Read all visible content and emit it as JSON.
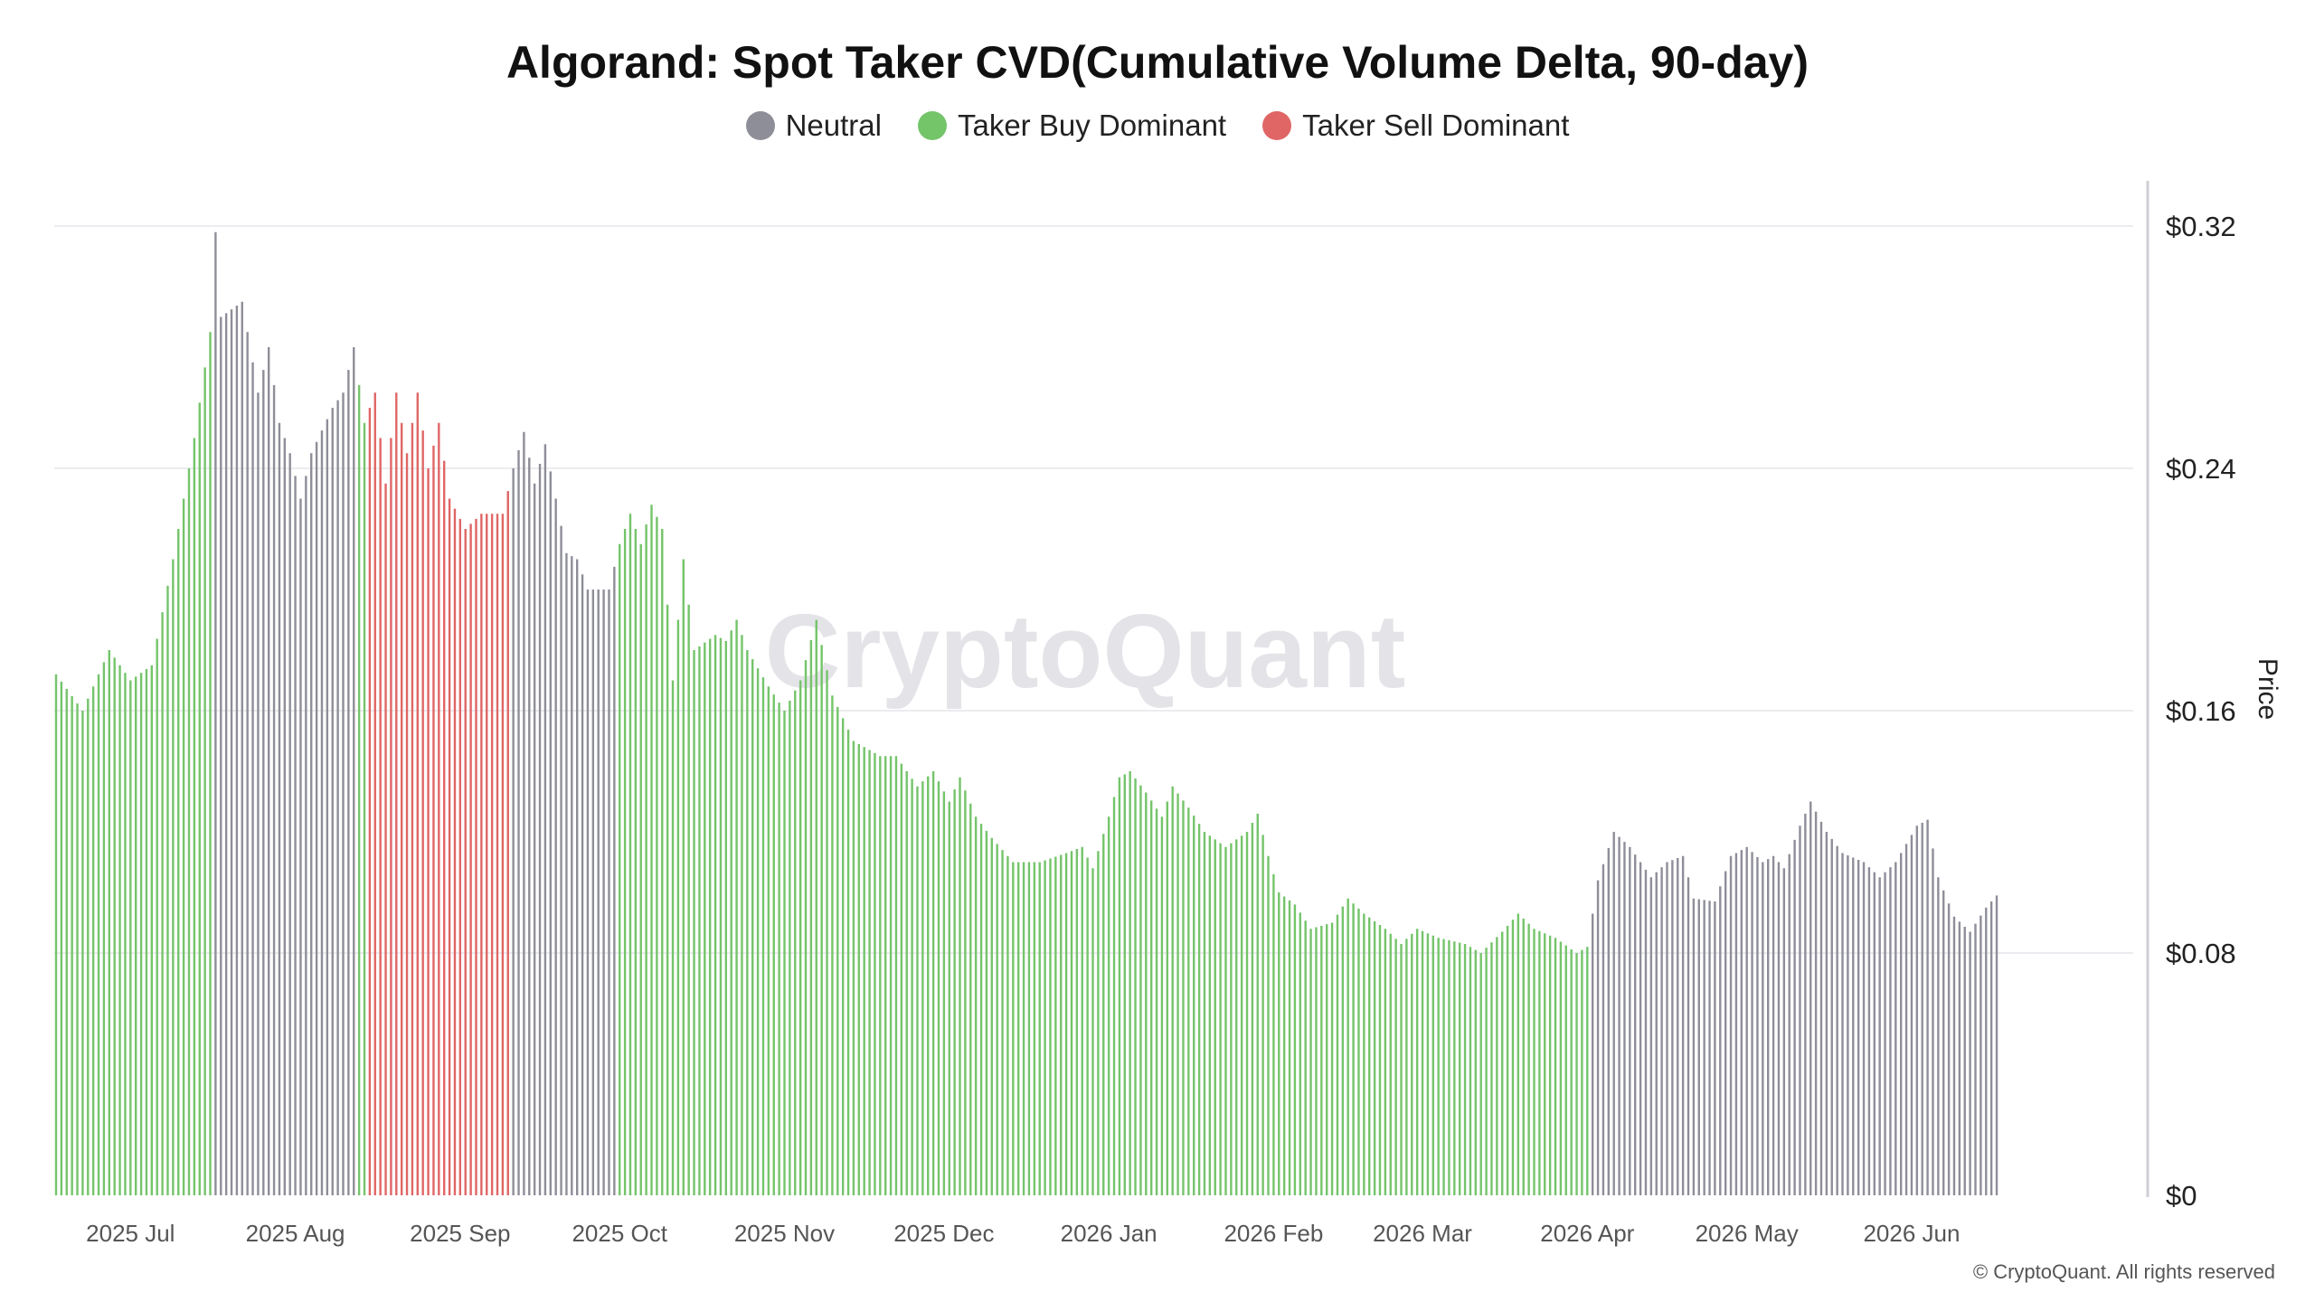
{
  "title": "Algorand: Spot Taker CVD(Cumulative Volume Delta, 90-day)",
  "legend": [
    {
      "label": "Neutral",
      "color": "#8e8e99"
    },
    {
      "label": "Taker Buy Dominant",
      "color": "#74c46a"
    },
    {
      "label": "Taker Sell Dominant",
      "color": "#e06666"
    }
  ],
  "watermark": "CryptoQuant",
  "footer": "© CryptoQuant. All rights reserved",
  "chart_data": {
    "type": "bar",
    "ylabel": "Price",
    "ylim": [
      0,
      0.32
    ],
    "y_ticks": [
      {
        "value": 0,
        "label": "$0"
      },
      {
        "value": 0.08,
        "label": "$0.08"
      },
      {
        "value": 0.16,
        "label": "$0.16"
      },
      {
        "value": 0.24,
        "label": "$0.24"
      },
      {
        "value": 0.32,
        "label": "$0.32"
      }
    ],
    "x_range": [
      0,
      390
    ],
    "x_ticks": [
      {
        "label": "2025 Jul",
        "day": 14
      },
      {
        "label": "2025 Aug",
        "day": 45
      },
      {
        "label": "2025 Sep",
        "day": 76
      },
      {
        "label": "2025 Oct",
        "day": 106
      },
      {
        "label": "2025 Nov",
        "day": 137
      },
      {
        "label": "2025 Dec",
        "day": 167
      },
      {
        "label": "2026 Jan",
        "day": 198
      },
      {
        "label": "2026 Feb",
        "day": 229
      },
      {
        "label": "2026 Mar",
        "day": 257
      },
      {
        "label": "2026 Apr",
        "day": 288
      },
      {
        "label": "2026 May",
        "day": 318
      },
      {
        "label": "2026 Jun",
        "day": 349
      }
    ],
    "grid": true,
    "legend_position": "top-center",
    "segments": [
      {
        "label": "Taker Buy Dominant",
        "from_day": 0,
        "to_day": 29,
        "color": "#74c46a"
      },
      {
        "label": "Neutral",
        "from_day": 30,
        "to_day": 56,
        "color": "#8e8e99"
      },
      {
        "label": "Taker Buy Dominant",
        "from_day": 57,
        "to_day": 58,
        "color": "#74c46a"
      },
      {
        "label": "Taker Sell Dominant",
        "from_day": 59,
        "to_day": 85,
        "color": "#e06666"
      },
      {
        "label": "Neutral",
        "from_day": 86,
        "to_day": 105,
        "color": "#8e8e99"
      },
      {
        "label": "Taker Buy Dominant",
        "from_day": 106,
        "to_day": 288,
        "color": "#74c46a"
      },
      {
        "label": "Neutral",
        "from_day": 289,
        "to_day": 365,
        "color": "#8e8e99"
      }
    ],
    "price_keypoints": [
      [
        0,
        0.172
      ],
      [
        5,
        0.16
      ],
      [
        10,
        0.18
      ],
      [
        14,
        0.17
      ],
      [
        18,
        0.175
      ],
      [
        22,
        0.21
      ],
      [
        26,
        0.25
      ],
      [
        29,
        0.285
      ],
      [
        30,
        0.318
      ],
      [
        31,
        0.29
      ],
      [
        35,
        0.295
      ],
      [
        38,
        0.265
      ],
      [
        40,
        0.28
      ],
      [
        42,
        0.255
      ],
      [
        44,
        0.245
      ],
      [
        46,
        0.23
      ],
      [
        48,
        0.245
      ],
      [
        52,
        0.26
      ],
      [
        54,
        0.265
      ],
      [
        56,
        0.28
      ],
      [
        58,
        0.255
      ],
      [
        60,
        0.265
      ],
      [
        62,
        0.235
      ],
      [
        64,
        0.265
      ],
      [
        66,
        0.245
      ],
      [
        68,
        0.265
      ],
      [
        70,
        0.24
      ],
      [
        72,
        0.255
      ],
      [
        74,
        0.23
      ],
      [
        77,
        0.22
      ],
      [
        80,
        0.225
      ],
      [
        84,
        0.225
      ],
      [
        86,
        0.24
      ],
      [
        88,
        0.252
      ],
      [
        90,
        0.235
      ],
      [
        92,
        0.248
      ],
      [
        94,
        0.23
      ],
      [
        96,
        0.212
      ],
      [
        98,
        0.21
      ],
      [
        100,
        0.2
      ],
      [
        104,
        0.2
      ],
      [
        106,
        0.215
      ],
      [
        108,
        0.225
      ],
      [
        110,
        0.215
      ],
      [
        112,
        0.228
      ],
      [
        114,
        0.22
      ],
      [
        116,
        0.17
      ],
      [
        118,
        0.21
      ],
      [
        120,
        0.18
      ],
      [
        124,
        0.185
      ],
      [
        126,
        0.183
      ],
      [
        128,
        0.19
      ],
      [
        130,
        0.18
      ],
      [
        134,
        0.168
      ],
      [
        137,
        0.16
      ],
      [
        140,
        0.17
      ],
      [
        143,
        0.19
      ],
      [
        146,
        0.165
      ],
      [
        150,
        0.15
      ],
      [
        155,
        0.145
      ],
      [
        158,
        0.145
      ],
      [
        162,
        0.135
      ],
      [
        165,
        0.14
      ],
      [
        168,
        0.13
      ],
      [
        170,
        0.138
      ],
      [
        173,
        0.125
      ],
      [
        176,
        0.118
      ],
      [
        180,
        0.11
      ],
      [
        185,
        0.11
      ],
      [
        190,
        0.113
      ],
      [
        193,
        0.115
      ],
      [
        195,
        0.108
      ],
      [
        198,
        0.125
      ],
      [
        200,
        0.138
      ],
      [
        202,
        0.14
      ],
      [
        205,
        0.133
      ],
      [
        208,
        0.125
      ],
      [
        210,
        0.135
      ],
      [
        213,
        0.128
      ],
      [
        216,
        0.12
      ],
      [
        220,
        0.115
      ],
      [
        224,
        0.12
      ],
      [
        226,
        0.126
      ],
      [
        228,
        0.112
      ],
      [
        230,
        0.1
      ],
      [
        233,
        0.096
      ],
      [
        236,
        0.088
      ],
      [
        240,
        0.09
      ],
      [
        243,
        0.098
      ],
      [
        246,
        0.093
      ],
      [
        250,
        0.088
      ],
      [
        253,
        0.083
      ],
      [
        256,
        0.088
      ],
      [
        260,
        0.085
      ],
      [
        265,
        0.083
      ],
      [
        268,
        0.08
      ],
      [
        272,
        0.087
      ],
      [
        275,
        0.093
      ],
      [
        278,
        0.088
      ],
      [
        282,
        0.085
      ],
      [
        286,
        0.08
      ],
      [
        288,
        0.082
      ],
      [
        290,
        0.104
      ],
      [
        293,
        0.12
      ],
      [
        296,
        0.115
      ],
      [
        300,
        0.105
      ],
      [
        303,
        0.11
      ],
      [
        306,
        0.112
      ],
      [
        308,
        0.098
      ],
      [
        312,
        0.097
      ],
      [
        315,
        0.112
      ],
      [
        318,
        0.115
      ],
      [
        321,
        0.11
      ],
      [
        323,
        0.112
      ],
      [
        325,
        0.108
      ],
      [
        328,
        0.122
      ],
      [
        330,
        0.13
      ],
      [
        333,
        0.12
      ],
      [
        336,
        0.113
      ],
      [
        340,
        0.11
      ],
      [
        343,
        0.105
      ],
      [
        346,
        0.11
      ],
      [
        350,
        0.122
      ],
      [
        352,
        0.124
      ],
      [
        354,
        0.105
      ],
      [
        357,
        0.092
      ],
      [
        360,
        0.087
      ],
      [
        363,
        0.095
      ],
      [
        365,
        0.099
      ]
    ]
  }
}
